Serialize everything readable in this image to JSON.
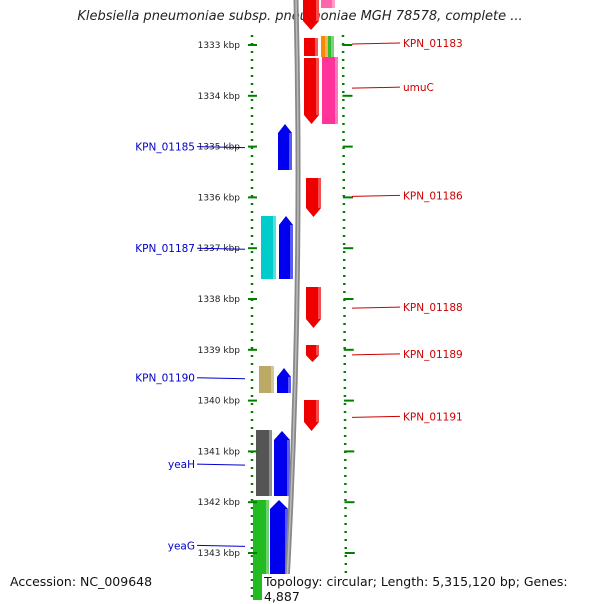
{
  "title": "Klebsiella pneumoniae subsp. pneumoniae MGH 78578, complete ...",
  "accession": "Accession: NC_009648",
  "topology": "Topology: circular; Length: 5,315,120 bp; Genes: 4,887",
  "colors": {
    "forward_cds": "#0000ee",
    "reverse_cds": "#ee0000",
    "backbone": "#888888",
    "ticks": "#008000",
    "left_label": "#0000cc",
    "right_label": "#cc0000"
  },
  "scale": {
    "unit": "kbp",
    "ticks": [
      {
        "kbp": 1333,
        "label": "1333 kbp"
      },
      {
        "kbp": 1334,
        "label": "1334 kbp"
      },
      {
        "kbp": 1335,
        "label": "1335 kbp"
      },
      {
        "kbp": 1336,
        "label": "1336 kbp"
      },
      {
        "kbp": 1337,
        "label": "1337 kbp"
      },
      {
        "kbp": 1338,
        "label": "1338 kbp"
      },
      {
        "kbp": 1339,
        "label": "1339 kbp"
      },
      {
        "kbp": 1340,
        "label": "1340 kbp"
      },
      {
        "kbp": 1341,
        "label": "1341 kbp"
      },
      {
        "kbp": 1342,
        "label": "1342 kbp"
      },
      {
        "kbp": 1343,
        "label": "1343 kbp"
      }
    ]
  },
  "left_labels": [
    {
      "text": "KPN_01185",
      "kbp": 1335.0
    },
    {
      "text": "KPN_01187",
      "kbp": 1337.0
    },
    {
      "text": "KPN_01190",
      "kbp": 1339.55
    },
    {
      "text": "yeaH",
      "kbp": 1341.25
    },
    {
      "text": "yeaG",
      "kbp": 1342.85
    }
  ],
  "right_labels": [
    {
      "text": "KPN_01183",
      "kbp": 1332.98
    },
    {
      "text": "umuC",
      "kbp": 1333.85
    },
    {
      "text": "KPN_01186",
      "kbp": 1335.98
    },
    {
      "text": "KPN_01188",
      "kbp": 1338.18
    },
    {
      "text": "KPN_01189",
      "kbp": 1339.1
    },
    {
      "text": "KPN_01191",
      "kbp": 1340.33
    }
  ]
}
